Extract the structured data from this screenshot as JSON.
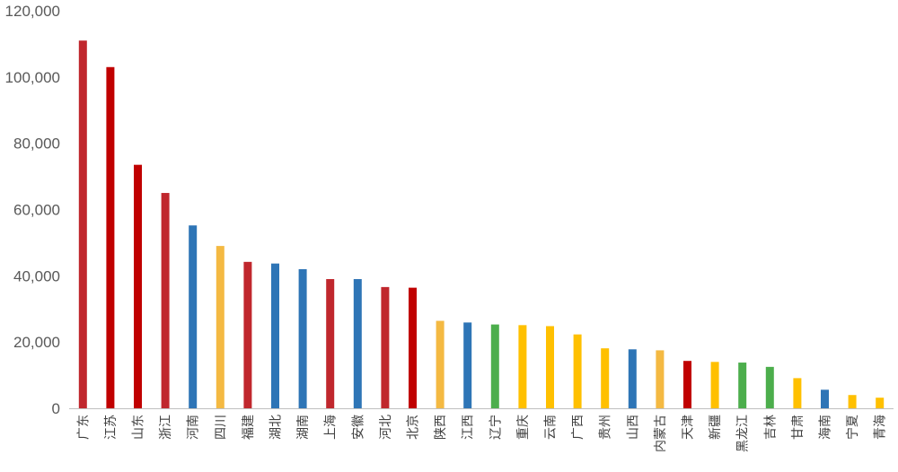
{
  "chart_data": {
    "type": "bar",
    "title": "",
    "xlabel": "",
    "ylabel": "",
    "ylim": [
      0,
      120000
    ],
    "yticks": [
      0,
      20000,
      40000,
      60000,
      80000,
      100000,
      120000
    ],
    "ytick_labels": [
      "0",
      "20,000",
      "40,000",
      "60,000",
      "80,000",
      "100,000",
      "120,000"
    ],
    "grid": false,
    "legend": "none",
    "categories": [
      "广东",
      "江苏",
      "山东",
      "浙江",
      "河南",
      "四川",
      "福建",
      "湖北",
      "湖南",
      "上海",
      "安徽",
      "河北",
      "北京",
      "陕西",
      "江西",
      "辽宁",
      "重庆",
      "云南",
      "广西",
      "贵州",
      "山西",
      "内蒙古",
      "天津",
      "新疆",
      "黑龙江",
      "吉林",
      "甘肃",
      "海南",
      "宁夏",
      "青海"
    ],
    "values": [
      111000,
      103000,
      73500,
      65000,
      55200,
      49000,
      44200,
      43700,
      42000,
      39000,
      39000,
      36600,
      36400,
      26400,
      25900,
      25300,
      25100,
      24800,
      22300,
      18100,
      17800,
      17500,
      14300,
      14000,
      13800,
      12500,
      9100,
      5600,
      4000,
      3200
    ],
    "colors": [
      "#c0272d",
      "#c00000",
      "#c00000",
      "#c0272d",
      "#2e75b6",
      "#f4b942",
      "#c0272d",
      "#2e75b6",
      "#2e75b6",
      "#c0272d",
      "#2e75b6",
      "#c0272d",
      "#c00000",
      "#f4b942",
      "#2e75b6",
      "#4cae4c",
      "#ffc000",
      "#ffc000",
      "#ffc000",
      "#ffc000",
      "#2e75b6",
      "#f4b942",
      "#c00000",
      "#ffc000",
      "#4cae4c",
      "#4cae4c",
      "#ffc000",
      "#2e75b6",
      "#ffc000",
      "#ffc000"
    ]
  }
}
